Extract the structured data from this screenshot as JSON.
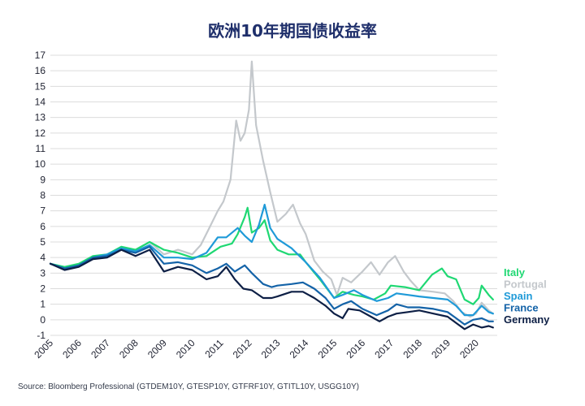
{
  "title": "欧洲10年期国债收益率",
  "source": "Source: Bloomberg Professional (GTDEM10Y, GTESP10Y, GTFRF10Y, GTITL10Y, USGG10Y)",
  "chart_data": {
    "type": "line",
    "title": "欧洲10年期国债收益率",
    "xlabel": "",
    "ylabel": "",
    "xlim": [
      2005.0,
      2020.75
    ],
    "ylim": [
      -1,
      17
    ],
    "y_ticks": [
      -1,
      0,
      1,
      2,
      3,
      4,
      5,
      6,
      7,
      8,
      9,
      10,
      11,
      12,
      13,
      14,
      15,
      16,
      17
    ],
    "x_ticks": [
      "2005",
      "2006",
      "2007",
      "2008",
      "2009",
      "2010",
      "2011",
      "2012",
      "2013",
      "2014",
      "2015",
      "2016",
      "2017",
      "2018",
      "2019",
      "2020"
    ],
    "grid": "horizontal",
    "legend_placement": "right end of lines",
    "series": [
      {
        "name": "Portugal",
        "color": "#c4c8cc",
        "points": [
          [
            2005.0,
            3.6
          ],
          [
            2005.5,
            3.3
          ],
          [
            2006.0,
            3.5
          ],
          [
            2006.5,
            4.0
          ],
          [
            2007.0,
            4.1
          ],
          [
            2007.5,
            4.6
          ],
          [
            2008.0,
            4.5
          ],
          [
            2008.5,
            5.0
          ],
          [
            2009.0,
            4.2
          ],
          [
            2009.5,
            4.5
          ],
          [
            2010.0,
            4.2
          ],
          [
            2010.3,
            4.8
          ],
          [
            2010.6,
            5.9
          ],
          [
            2010.9,
            7.0
          ],
          [
            2011.1,
            7.6
          ],
          [
            2011.35,
            9.0
          ],
          [
            2011.55,
            12.8
          ],
          [
            2011.7,
            11.5
          ],
          [
            2011.85,
            12.0
          ],
          [
            2012.0,
            13.5
          ],
          [
            2012.1,
            16.6
          ],
          [
            2012.25,
            12.5
          ],
          [
            2012.5,
            10.2
          ],
          [
            2012.75,
            8.2
          ],
          [
            2013.0,
            6.3
          ],
          [
            2013.3,
            6.8
          ],
          [
            2013.55,
            7.4
          ],
          [
            2013.8,
            6.2
          ],
          [
            2014.0,
            5.5
          ],
          [
            2014.3,
            3.8
          ],
          [
            2014.6,
            3.1
          ],
          [
            2014.9,
            2.6
          ],
          [
            2015.1,
            1.6
          ],
          [
            2015.3,
            2.7
          ],
          [
            2015.6,
            2.4
          ],
          [
            2016.0,
            3.1
          ],
          [
            2016.3,
            3.7
          ],
          [
            2016.6,
            2.9
          ],
          [
            2016.9,
            3.7
          ],
          [
            2017.15,
            4.1
          ],
          [
            2017.45,
            3.1
          ],
          [
            2017.7,
            2.5
          ],
          [
            2018.0,
            1.9
          ],
          [
            2018.5,
            1.8
          ],
          [
            2018.9,
            1.7
          ],
          [
            2019.2,
            1.2
          ],
          [
            2019.5,
            0.5
          ],
          [
            2019.8,
            0.2
          ],
          [
            2020.0,
            0.4
          ],
          [
            2020.2,
            1.1
          ],
          [
            2020.45,
            0.6
          ],
          [
            2020.6,
            0.4
          ]
        ]
      },
      {
        "name": "Italy",
        "color": "#1fd873",
        "points": [
          [
            2005.0,
            3.6
          ],
          [
            2005.5,
            3.4
          ],
          [
            2006.0,
            3.6
          ],
          [
            2006.5,
            4.1
          ],
          [
            2007.0,
            4.2
          ],
          [
            2007.5,
            4.7
          ],
          [
            2008.0,
            4.5
          ],
          [
            2008.5,
            5.0
          ],
          [
            2009.0,
            4.5
          ],
          [
            2009.5,
            4.3
          ],
          [
            2010.0,
            4.0
          ],
          [
            2010.5,
            4.1
          ],
          [
            2011.0,
            4.7
          ],
          [
            2011.4,
            4.9
          ],
          [
            2011.6,
            5.5
          ],
          [
            2011.85,
            6.6
          ],
          [
            2011.95,
            7.2
          ],
          [
            2012.1,
            5.6
          ],
          [
            2012.35,
            5.9
          ],
          [
            2012.55,
            6.4
          ],
          [
            2012.75,
            5.1
          ],
          [
            2013.0,
            4.5
          ],
          [
            2013.4,
            4.2
          ],
          [
            2013.8,
            4.2
          ],
          [
            2014.0,
            3.7
          ],
          [
            2014.5,
            2.6
          ],
          [
            2015.0,
            1.4
          ],
          [
            2015.3,
            1.8
          ],
          [
            2015.7,
            1.6
          ],
          [
            2016.0,
            1.5
          ],
          [
            2016.4,
            1.3
          ],
          [
            2016.8,
            1.7
          ],
          [
            2017.0,
            2.2
          ],
          [
            2017.5,
            2.1
          ],
          [
            2018.0,
            1.9
          ],
          [
            2018.45,
            2.9
          ],
          [
            2018.8,
            3.3
          ],
          [
            2019.0,
            2.8
          ],
          [
            2019.3,
            2.6
          ],
          [
            2019.6,
            1.3
          ],
          [
            2019.9,
            1.0
          ],
          [
            2020.1,
            1.4
          ],
          [
            2020.2,
            2.2
          ],
          [
            2020.45,
            1.6
          ],
          [
            2020.6,
            1.3
          ]
        ]
      },
      {
        "name": "Spain",
        "color": "#1f9ad8",
        "points": [
          [
            2005.0,
            3.6
          ],
          [
            2005.5,
            3.3
          ],
          [
            2006.0,
            3.5
          ],
          [
            2006.5,
            4.0
          ],
          [
            2007.0,
            4.2
          ],
          [
            2007.5,
            4.6
          ],
          [
            2008.0,
            4.4
          ],
          [
            2008.5,
            4.8
          ],
          [
            2009.0,
            4.0
          ],
          [
            2009.5,
            4.0
          ],
          [
            2010.0,
            3.9
          ],
          [
            2010.5,
            4.3
          ],
          [
            2010.9,
            5.3
          ],
          [
            2011.2,
            5.3
          ],
          [
            2011.6,
            5.9
          ],
          [
            2011.85,
            5.4
          ],
          [
            2012.1,
            5.0
          ],
          [
            2012.35,
            6.1
          ],
          [
            2012.55,
            7.4
          ],
          [
            2012.75,
            5.9
          ],
          [
            2013.0,
            5.2
          ],
          [
            2013.5,
            4.6
          ],
          [
            2014.0,
            3.7
          ],
          [
            2014.5,
            2.7
          ],
          [
            2015.0,
            1.4
          ],
          [
            2015.3,
            1.6
          ],
          [
            2015.7,
            1.9
          ],
          [
            2016.0,
            1.6
          ],
          [
            2016.5,
            1.2
          ],
          [
            2016.9,
            1.4
          ],
          [
            2017.2,
            1.7
          ],
          [
            2017.6,
            1.6
          ],
          [
            2018.0,
            1.5
          ],
          [
            2018.5,
            1.4
          ],
          [
            2019.0,
            1.3
          ],
          [
            2019.3,
            0.9
          ],
          [
            2019.6,
            0.3
          ],
          [
            2019.9,
            0.3
          ],
          [
            2020.2,
            0.9
          ],
          [
            2020.45,
            0.5
          ],
          [
            2020.6,
            0.4
          ]
        ]
      },
      {
        "name": "France",
        "color": "#1463a8",
        "points": [
          [
            2005.0,
            3.6
          ],
          [
            2005.5,
            3.3
          ],
          [
            2006.0,
            3.5
          ],
          [
            2006.5,
            4.0
          ],
          [
            2007.0,
            4.1
          ],
          [
            2007.5,
            4.5
          ],
          [
            2008.0,
            4.3
          ],
          [
            2008.5,
            4.7
          ],
          [
            2009.0,
            3.6
          ],
          [
            2009.5,
            3.7
          ],
          [
            2010.0,
            3.5
          ],
          [
            2010.5,
            3.0
          ],
          [
            2010.9,
            3.3
          ],
          [
            2011.2,
            3.6
          ],
          [
            2011.5,
            3.1
          ],
          [
            2011.85,
            3.5
          ],
          [
            2012.1,
            3.0
          ],
          [
            2012.5,
            2.3
          ],
          [
            2012.8,
            2.1
          ],
          [
            2013.0,
            2.2
          ],
          [
            2013.5,
            2.3
          ],
          [
            2013.9,
            2.4
          ],
          [
            2014.3,
            2.0
          ],
          [
            2014.7,
            1.4
          ],
          [
            2015.0,
            0.7
          ],
          [
            2015.3,
            1.0
          ],
          [
            2015.6,
            1.2
          ],
          [
            2016.0,
            0.7
          ],
          [
            2016.5,
            0.3
          ],
          [
            2016.9,
            0.6
          ],
          [
            2017.2,
            1.0
          ],
          [
            2017.6,
            0.8
          ],
          [
            2018.0,
            0.8
          ],
          [
            2018.5,
            0.7
          ],
          [
            2019.0,
            0.5
          ],
          [
            2019.3,
            0.1
          ],
          [
            2019.6,
            -0.3
          ],
          [
            2019.9,
            0.0
          ],
          [
            2020.2,
            0.1
          ],
          [
            2020.45,
            -0.1
          ],
          [
            2020.6,
            -0.1
          ]
        ]
      },
      {
        "name": "Germany",
        "color": "#0d1f45",
        "points": [
          [
            2005.0,
            3.6
          ],
          [
            2005.5,
            3.2
          ],
          [
            2006.0,
            3.4
          ],
          [
            2006.5,
            3.9
          ],
          [
            2007.0,
            4.0
          ],
          [
            2007.5,
            4.5
          ],
          [
            2008.0,
            4.1
          ],
          [
            2008.5,
            4.5
          ],
          [
            2009.0,
            3.1
          ],
          [
            2009.5,
            3.4
          ],
          [
            2010.0,
            3.2
          ],
          [
            2010.5,
            2.6
          ],
          [
            2010.9,
            2.8
          ],
          [
            2011.2,
            3.4
          ],
          [
            2011.5,
            2.6
          ],
          [
            2011.8,
            2.0
          ],
          [
            2012.1,
            1.9
          ],
          [
            2012.5,
            1.4
          ],
          [
            2012.8,
            1.4
          ],
          [
            2013.0,
            1.5
          ],
          [
            2013.5,
            1.8
          ],
          [
            2013.9,
            1.8
          ],
          [
            2014.3,
            1.4
          ],
          [
            2014.7,
            0.9
          ],
          [
            2015.0,
            0.4
          ],
          [
            2015.3,
            0.1
          ],
          [
            2015.5,
            0.7
          ],
          [
            2015.9,
            0.6
          ],
          [
            2016.3,
            0.2
          ],
          [
            2016.6,
            -0.1
          ],
          [
            2016.9,
            0.2
          ],
          [
            2017.2,
            0.4
          ],
          [
            2017.6,
            0.5
          ],
          [
            2018.0,
            0.6
          ],
          [
            2018.5,
            0.4
          ],
          [
            2019.0,
            0.2
          ],
          [
            2019.3,
            -0.2
          ],
          [
            2019.6,
            -0.6
          ],
          [
            2019.9,
            -0.3
          ],
          [
            2020.2,
            -0.5
          ],
          [
            2020.45,
            -0.4
          ],
          [
            2020.6,
            -0.5
          ]
        ]
      }
    ],
    "legend": [
      {
        "label": "Italy",
        "color": "#1fd873"
      },
      {
        "label": "Portugal",
        "color": "#c4c8cc"
      },
      {
        "label": "Spain",
        "color": "#1f9ad8"
      },
      {
        "label": "France",
        "color": "#1463a8"
      },
      {
        "label": "Germany",
        "color": "#0d1f45"
      }
    ]
  }
}
